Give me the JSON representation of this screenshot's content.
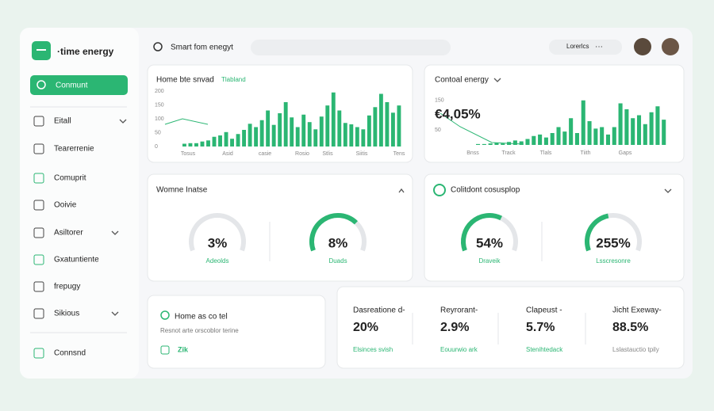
{
  "sidebar": {
    "logo": "·time energy",
    "active": "Conmunt",
    "items": [
      "Eitall",
      "Tearerrenie",
      "Comuprit",
      "Ooivie",
      "Asiltorer",
      "Gxatuntiente",
      "frepugy",
      "Sikious",
      "Connsnd"
    ]
  },
  "topbar": {
    "search": "Smart fom enegyt",
    "account": "Lorerlcs",
    "more": "···"
  },
  "usage": {
    "title": "Home bte snvad",
    "tag": "Tlabland",
    "ylim": [
      0,
      200
    ],
    "yticks": [
      0,
      50,
      100,
      150,
      200
    ],
    "categories": [
      "Tosus",
      "Asid",
      "casie",
      "Rosio",
      "Stlis",
      "Siitis",
      "Tens"
    ],
    "values": [
      10,
      12,
      12,
      18,
      22,
      35,
      40,
      52,
      28,
      45,
      60,
      82,
      70,
      95,
      130,
      78,
      120,
      160,
      105,
      70,
      115,
      88,
      62,
      108,
      148,
      195,
      130,
      85,
      80,
      70,
      62,
      112,
      142,
      190,
      160,
      122,
      148
    ]
  },
  "control": {
    "title": "Contoal energy",
    "value": "€4,05%",
    "ylim": [
      0,
      200
    ],
    "yticks": [
      50,
      150
    ],
    "categories": [
      "Bnss",
      "Track",
      "Tlals",
      "Tiith",
      "Gaps"
    ],
    "values": [
      3,
      3,
      5,
      8,
      5,
      10,
      15,
      12,
      20,
      30,
      35,
      25,
      40,
      60,
      45,
      90,
      40,
      150,
      80,
      55,
      60,
      35,
      60,
      140,
      120,
      90,
      100,
      70,
      110,
      130,
      85
    ]
  },
  "home": {
    "title": "Womne Inatse",
    "gauges": [
      {
        "value": "3%",
        "label": "Adeolds"
      },
      {
        "value": "8%",
        "label": "Duads",
        "fill": 70
      }
    ]
  },
  "consumption": {
    "title": "Colitdont cosusplop",
    "gauges": [
      {
        "value": "54%",
        "label": "Draveik",
        "fill": 62
      },
      {
        "value": "255%",
        "label": "Lsscresonre",
        "fill": 45
      }
    ]
  },
  "note": {
    "title": "Home as co tel",
    "text": "Resnot arte orscoblor terine",
    "badge": "Zik"
  },
  "stats": [
    {
      "title": "Dasreatione d-",
      "value": "20%",
      "sub": "Elsinces svish"
    },
    {
      "title": "Reyrorant-",
      "value": "2.9%",
      "sub": "Eouurwio ark"
    },
    {
      "title": "Clapeust -",
      "value": "5.7%",
      "sub": "Stenihtedack"
    },
    {
      "title": "Jicht Exeway-",
      "value": "88.5%",
      "sub": "Lslastauctio tpily"
    }
  ]
}
